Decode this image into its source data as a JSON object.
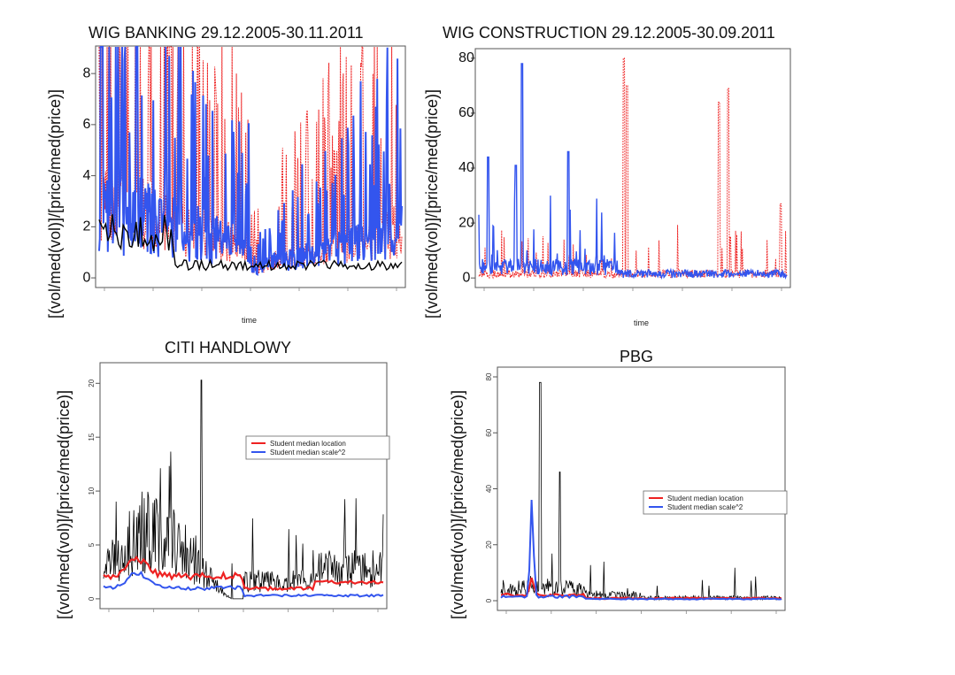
{
  "chart_data": [
    {
      "id": "wig-banking",
      "type": "line",
      "title": "WIG BANKING 29.12.2005-30.11.2011",
      "xlabel": "time",
      "ylabel": "[(vol/med(vol)]/[price/med(price)]",
      "ylim": [
        0,
        8.7
      ],
      "yticks": [
        0,
        2,
        4,
        6,
        8
      ],
      "colors": {
        "series1": "#ee2222",
        "series2": "#3355ee",
        "series3": "#000000"
      }
    },
    {
      "id": "wig-construction",
      "type": "line",
      "title": "WIG CONSTRUCTION 29.12.2005-30.09.2011",
      "xlabel": "time",
      "ylabel": "[(vol/med(vol)]/[price/med(price)]",
      "ylim": [
        0,
        80
      ],
      "yticks": [
        0,
        20,
        40,
        60,
        80
      ],
      "colors": {
        "series1": "#ee2222",
        "series2": "#3355ee"
      }
    },
    {
      "id": "citi-handlowy",
      "type": "line",
      "title": "CITI HANDLOWY",
      "ylabel": "[(vol/med(vol)]/[price/med(price)]",
      "ylim": [
        0,
        21
      ],
      "yticks": [
        0,
        5,
        10,
        15,
        20
      ],
      "legend": [
        "Student median location",
        "Student median scale^2"
      ],
      "legend_position": "upper-right",
      "colors": {
        "raw": "#000000",
        "location": "#ee2222",
        "scale": "#3355ee"
      }
    },
    {
      "id": "pbg",
      "type": "line",
      "title": "PBG",
      "ylabel": "[(vol/med(vol)]/[price/med(price)]",
      "ylim": [
        0,
        80
      ],
      "yticks": [
        0,
        20,
        40,
        60,
        80
      ],
      "legend": [
        "Student median location",
        "Student median scale^2"
      ],
      "legend_position": "right",
      "colors": {
        "raw": "#000000",
        "location": "#ee2222",
        "scale": "#3355ee"
      }
    }
  ]
}
